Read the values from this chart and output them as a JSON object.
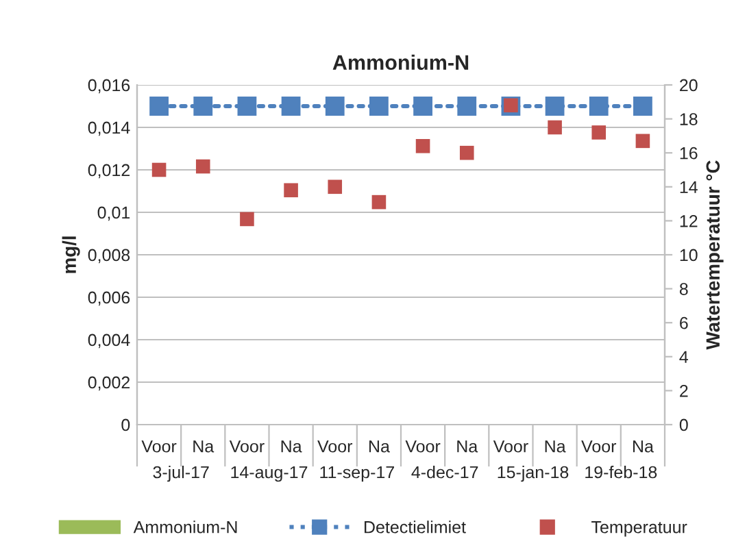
{
  "chart_data": {
    "type": "bar",
    "title": "Ammonium-N",
    "ylabel": "mg/l",
    "y2label": "Watertemperatuur °C",
    "categories": [
      "Voor",
      "Na",
      "Voor",
      "Na",
      "Voor",
      "Na",
      "Voor",
      "Na",
      "Voor",
      "Na",
      "Voor",
      "Na"
    ],
    "annotations": [
      "3-jul-17",
      "14-aug-17",
      "11-sep-17",
      "4-dec-17",
      "15-jan-18",
      "19-feb-18"
    ],
    "series": [
      {
        "name": "Ammonium-N",
        "color": "#9bbb59",
        "values": [
          null,
          null,
          null,
          null,
          null,
          null,
          null,
          null,
          null,
          null,
          null,
          null
        ]
      },
      {
        "name": "Detectielimiet",
        "type": "line",
        "color": "#4f81bd",
        "marker": "square",
        "line_style": "dotted",
        "values": [
          0.015,
          0.015,
          0.015,
          0.015,
          0.015,
          0.015,
          0.015,
          0.015,
          0.015,
          0.015,
          0.015,
          0.015
        ]
      },
      {
        "name": "Temperatuur",
        "type": "scatter",
        "axis": "y2",
        "color": "#c0504d",
        "marker": "square",
        "values": [
          15.0,
          15.2,
          12.1,
          13.8,
          14.0,
          13.1,
          16.4,
          16.0,
          18.8,
          17.5,
          17.2,
          16.7
        ]
      }
    ],
    "ylim": [
      0,
      0.016
    ],
    "yticks": [
      0,
      {
        "value": 0.002,
        "label": "0,002"
      },
      {
        "value": 0.004,
        "label": "0,004"
      },
      {
        "value": 0.006,
        "label": "0,006"
      },
      {
        "value": 0.008,
        "label": "0,008"
      },
      {
        "value": 0.01,
        "label": "0,01"
      },
      {
        "value": 0.012,
        "label": "0,012"
      },
      {
        "value": 0.014,
        "label": "0,014"
      },
      {
        "value": 0.016,
        "label": "0,016"
      }
    ],
    "y2lim": [
      0,
      20
    ],
    "y2ticks": [
      0,
      2,
      4,
      6,
      8,
      10,
      12,
      14,
      16,
      18,
      20
    ],
    "grid": "y",
    "legend": "bottom"
  }
}
